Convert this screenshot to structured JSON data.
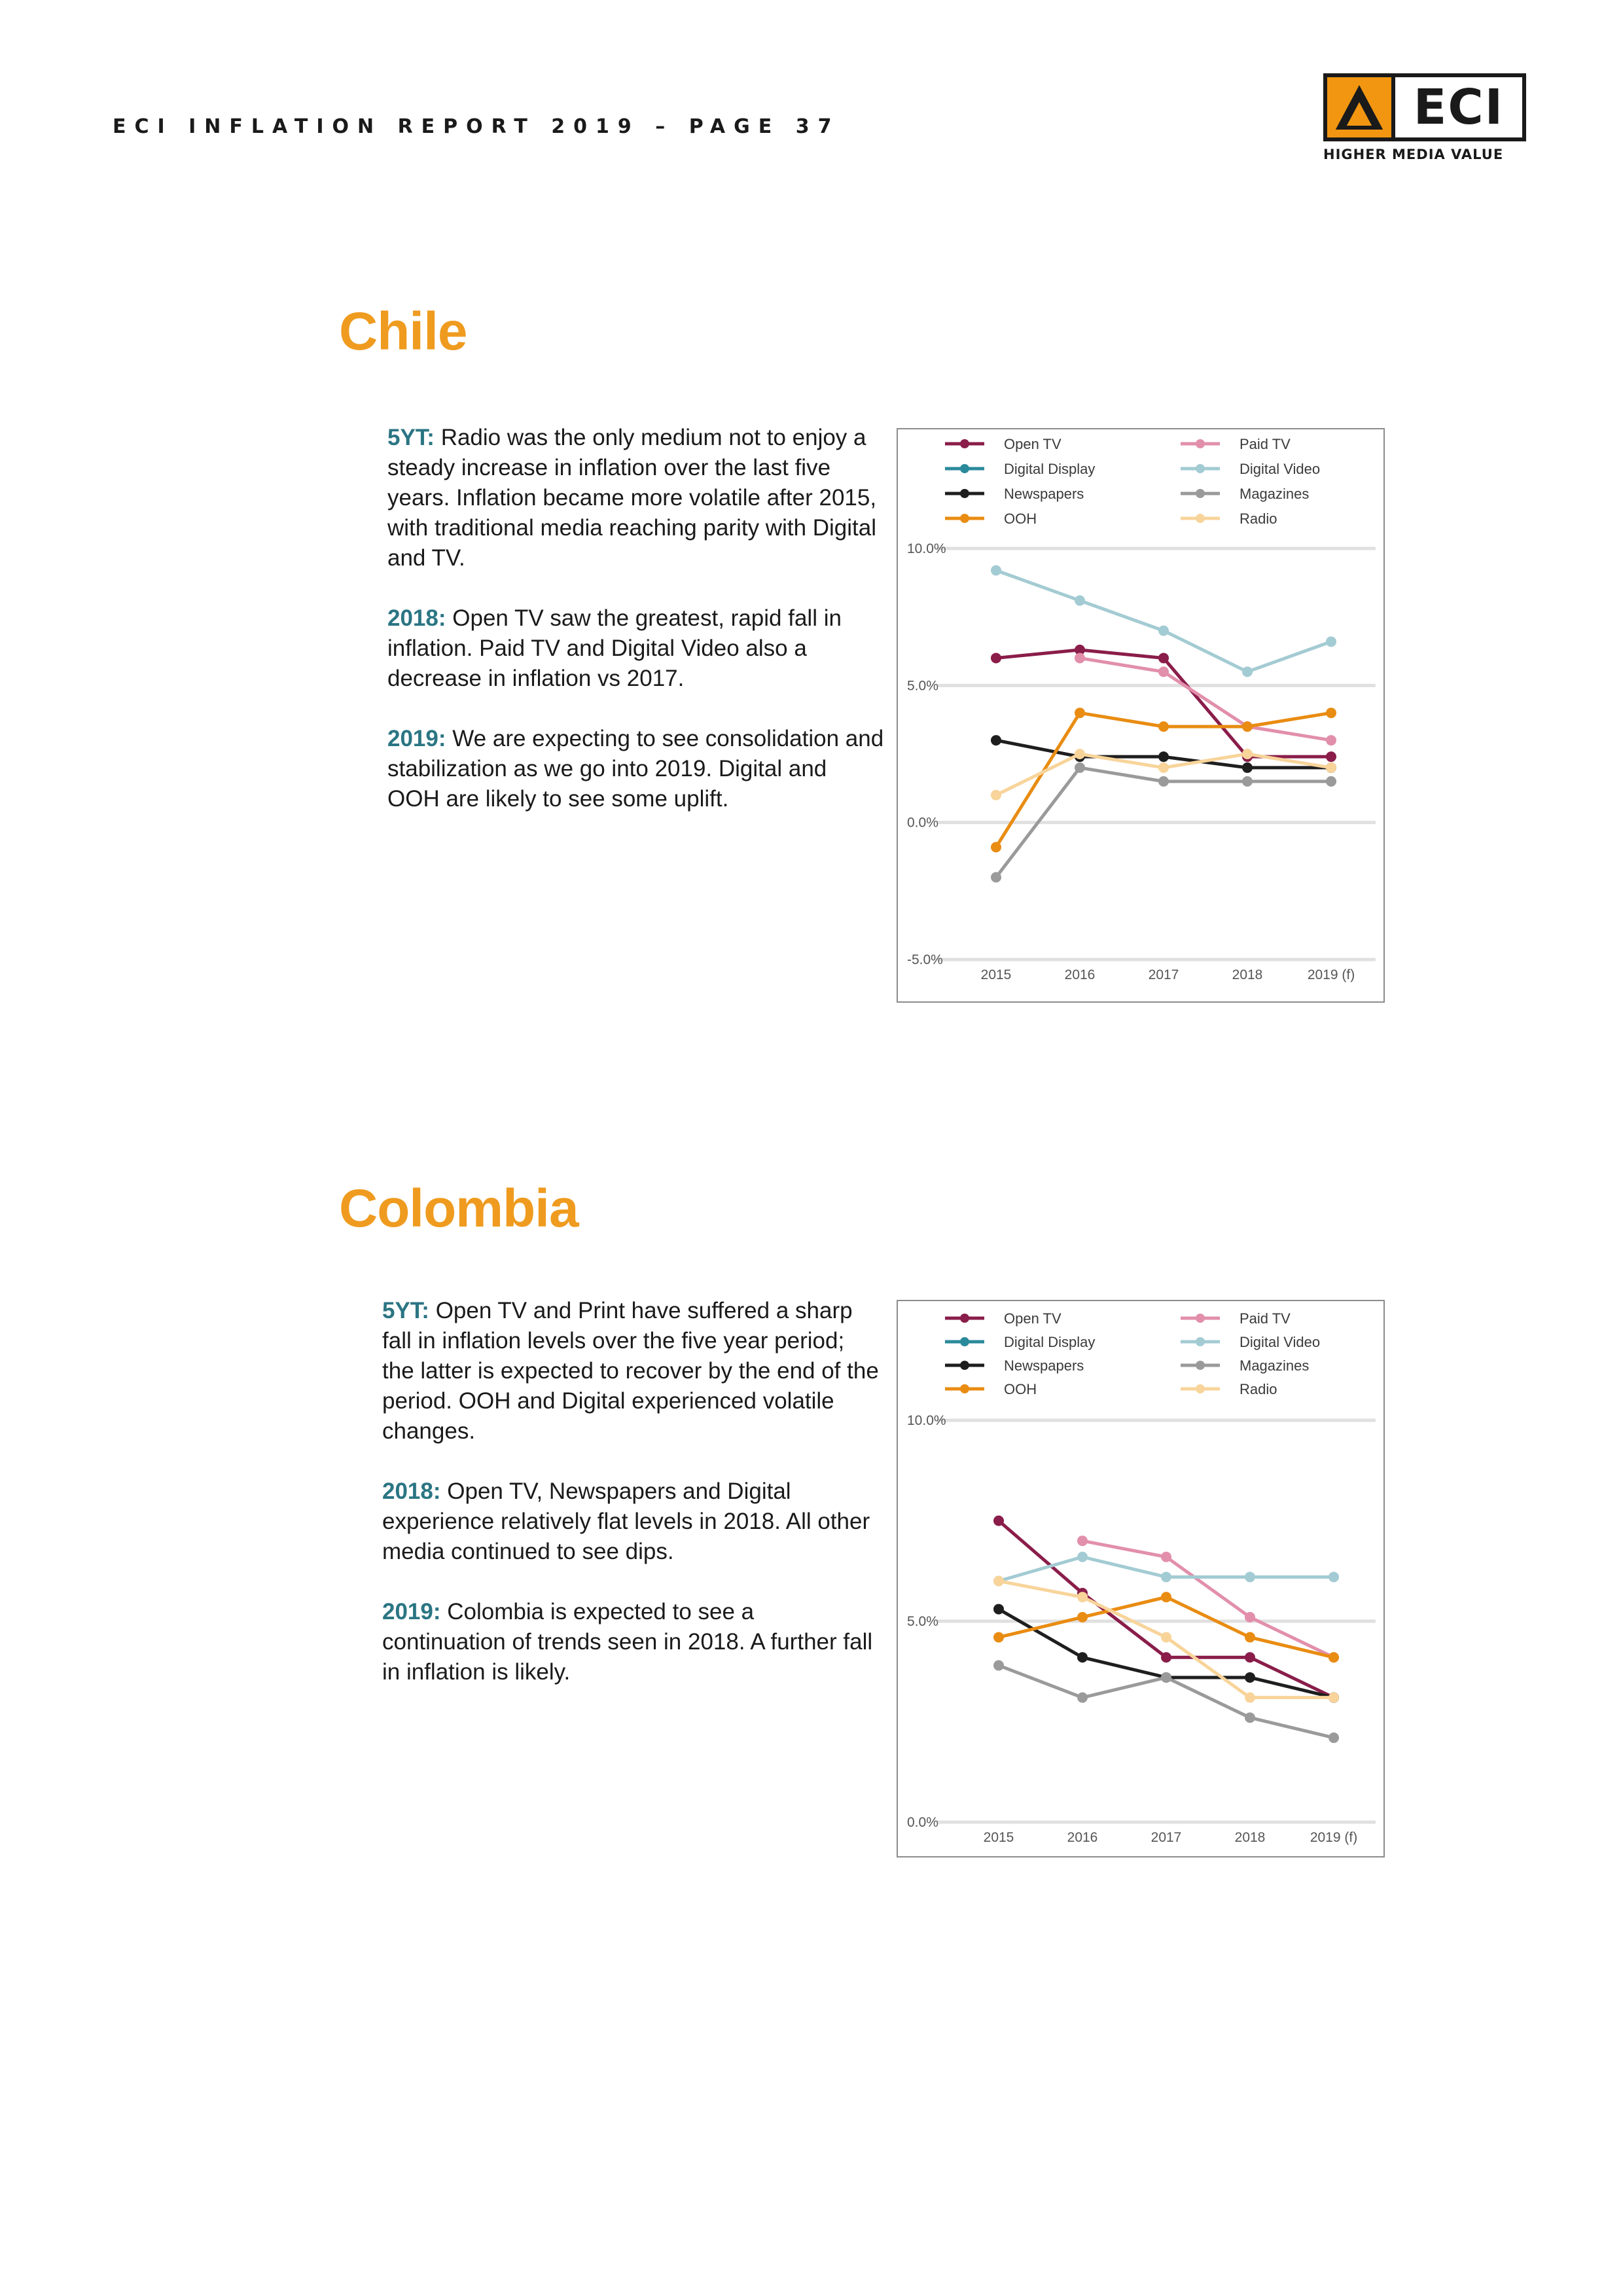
{
  "header": {
    "title": "ECI INFLATION REPORT 2019 – PAGE 37"
  },
  "logo": {
    "wordmark": "ECI",
    "tagline": "HIGHER MEDIA VALUE",
    "icon": "eci-arrow-icon",
    "accent_color": "#f29611"
  },
  "sections": [
    {
      "title": "Chile",
      "paragraphs": [
        {
          "label": "5YT:",
          "text": " Radio was the only medium not to enjoy a steady increase in inflation over the last five years. Inflation became more volatile after 2015, with traditional media reaching parity with Digital and TV."
        },
        {
          "label": "2018:",
          "text": " Open TV saw the greatest, rapid fall in inflation. Paid TV and Digital Video also a decrease in inflation vs 2017."
        },
        {
          "label": "2019:",
          "text": " We are expecting to see consolidation and stabilization as we go into 2019. Digital and OOH are likely to see some uplift."
        }
      ]
    },
    {
      "title": "Colombia",
      "paragraphs": [
        {
          "label": "5YT:",
          "text": " Open TV and Print have suffered a sharp fall in inflation levels over the five year period; the latter is expected to recover by the end of the period. OOH and Digital experienced volatile changes."
        },
        {
          "label": "2018:",
          "text": " Open TV, Newspapers and Digital experience relatively flat levels in 2018. All other media continued to see dips."
        },
        {
          "label": "2019:",
          "text": " Colombia is expected to see a continuation of trends seen in 2018. A further fall in inflation is likely."
        }
      ]
    }
  ],
  "chart_data": [
    {
      "type": "line",
      "title": "",
      "xlabel": "",
      "ylabel": "",
      "x": [
        "2015",
        "2016",
        "2017",
        "2018",
        "2019 (f)"
      ],
      "ylim": [
        -5.0,
        10.0
      ],
      "yticks": [
        10.0,
        5.0,
        0.0,
        -5.0
      ],
      "ytick_labels": [
        "10.0%",
        "5.0%",
        "0.0%",
        "-5.0%"
      ],
      "grid": true,
      "legend_position": "top",
      "series": [
        {
          "name": "Open TV",
          "color": "#8a1d4a",
          "values": [
            6.0,
            6.3,
            6.0,
            2.4,
            2.4
          ]
        },
        {
          "name": "Paid TV",
          "color": "#e28fab",
          "values": [
            null,
            6.0,
            5.5,
            3.5,
            3.0
          ]
        },
        {
          "name": "Digital Display",
          "color": "#2a8a9b",
          "values": [
            null,
            null,
            null,
            null,
            null
          ]
        },
        {
          "name": "Digital Video",
          "color": "#a3cbd3",
          "values": [
            9.2,
            8.1,
            7.0,
            5.5,
            6.6
          ]
        },
        {
          "name": "Newspapers",
          "color": "#1e1e1e",
          "values": [
            3.0,
            2.4,
            2.4,
            2.0,
            2.0
          ]
        },
        {
          "name": "Magazines",
          "color": "#9a9a9a",
          "values": [
            -2.0,
            2.0,
            1.5,
            1.5,
            1.5
          ]
        },
        {
          "name": "OOH",
          "color": "#e98c12",
          "values": [
            -0.9,
            4.0,
            3.5,
            3.5,
            4.0
          ]
        },
        {
          "name": "Radio",
          "color": "#f8d49a",
          "values": [
            1.0,
            2.5,
            2.0,
            2.5,
            2.0
          ]
        }
      ]
    },
    {
      "type": "line",
      "title": "",
      "xlabel": "",
      "ylabel": "",
      "x": [
        "2015",
        "2016",
        "2017",
        "2018",
        "2019 (f)"
      ],
      "ylim": [
        0.0,
        10.0
      ],
      "yticks": [
        10.0,
        5.0,
        0.0
      ],
      "ytick_labels": [
        "10.0%",
        "5.0%",
        "0.0%"
      ],
      "grid": true,
      "legend_position": "top",
      "series": [
        {
          "name": "Open TV",
          "color": "#8a1d4a",
          "values": [
            7.5,
            5.7,
            4.1,
            4.1,
            3.1
          ]
        },
        {
          "name": "Paid TV",
          "color": "#e28fab",
          "values": [
            null,
            7.0,
            6.6,
            5.1,
            4.1
          ]
        },
        {
          "name": "Digital Display",
          "color": "#2a8a9b",
          "values": [
            null,
            null,
            null,
            null,
            null
          ]
        },
        {
          "name": "Digital Video",
          "color": "#a3cbd3",
          "values": [
            6.0,
            6.6,
            6.1,
            6.1,
            6.1
          ]
        },
        {
          "name": "Newspapers",
          "color": "#1e1e1e",
          "values": [
            5.3,
            4.1,
            3.6,
            3.6,
            3.1
          ]
        },
        {
          "name": "Magazines",
          "color": "#9a9a9a",
          "values": [
            3.9,
            3.1,
            3.6,
            2.6,
            2.1
          ]
        },
        {
          "name": "OOH",
          "color": "#e98c12",
          "values": [
            4.6,
            5.1,
            5.6,
            4.6,
            4.1
          ]
        },
        {
          "name": "Radio",
          "color": "#f8d49a",
          "values": [
            6.0,
            5.6,
            4.6,
            3.1,
            3.1
          ]
        }
      ]
    }
  ]
}
